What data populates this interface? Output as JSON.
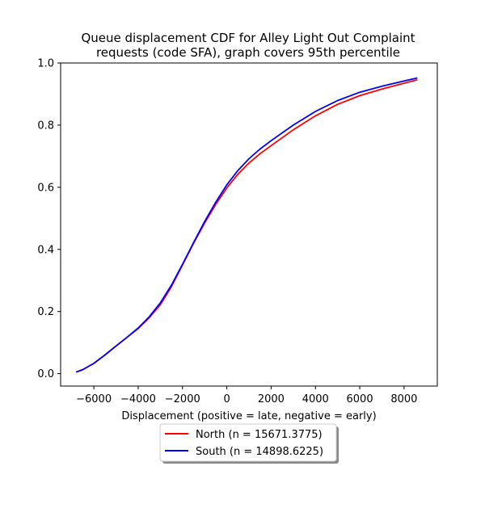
{
  "chart_data": {
    "type": "line",
    "title_lines": [
      "Queue displacement CDF for Alley Light Out Complaint",
      "requests (code SFA), graph covers 95th percentile"
    ],
    "xlabel": "Displacement (positive = late, negative = early)",
    "ylabel": "",
    "xlim": [
      -7500,
      9500
    ],
    "ylim": [
      -0.04,
      1.0
    ],
    "xticks": [
      -6000,
      -4000,
      -2000,
      0,
      2000,
      4000,
      6000,
      8000
    ],
    "xtick_labels": [
      "−6000",
      "−4000",
      "−2000",
      "0",
      "2000",
      "4000",
      "6000",
      "8000"
    ],
    "yticks": [
      0.0,
      0.2,
      0.4,
      0.6,
      0.8,
      1.0
    ],
    "ytick_labels": [
      "0.0",
      "0.2",
      "0.4",
      "0.6",
      "0.8",
      "1.0"
    ],
    "grid": false,
    "legend_position": "below",
    "series": [
      {
        "name": "North (n = 15671.3775)",
        "color": "#ff0000",
        "x": [
          -6800,
          -6500,
          -6000,
          -5500,
          -5000,
          -4500,
          -4000,
          -3500,
          -3000,
          -2500,
          -2000,
          -1500,
          -1000,
          -500,
          0,
          500,
          1000,
          1500,
          2000,
          3000,
          4000,
          5000,
          6000,
          7000,
          8000,
          8600
        ],
        "y": [
          0.005,
          0.013,
          0.033,
          0.06,
          0.089,
          0.117,
          0.145,
          0.18,
          0.222,
          0.28,
          0.35,
          0.42,
          0.485,
          0.545,
          0.598,
          0.642,
          0.678,
          0.708,
          0.734,
          0.785,
          0.83,
          0.867,
          0.895,
          0.916,
          0.935,
          0.946
        ]
      },
      {
        "name": "South (n = 14898.6225)",
        "color": "#0000ff",
        "x": [
          -6800,
          -6500,
          -6000,
          -5500,
          -5000,
          -4500,
          -4000,
          -3500,
          -3000,
          -2500,
          -2000,
          -1500,
          -1000,
          -500,
          0,
          500,
          1000,
          1500,
          2000,
          3000,
          4000,
          5000,
          6000,
          7000,
          8000,
          8600
        ],
        "y": [
          0.005,
          0.013,
          0.033,
          0.06,
          0.089,
          0.117,
          0.147,
          0.183,
          0.228,
          0.285,
          0.352,
          0.422,
          0.49,
          0.552,
          0.608,
          0.654,
          0.692,
          0.723,
          0.75,
          0.8,
          0.844,
          0.879,
          0.906,
          0.925,
          0.942,
          0.952
        ]
      }
    ]
  }
}
